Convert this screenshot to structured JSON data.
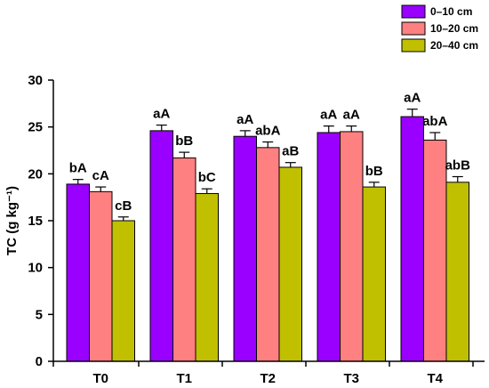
{
  "chart_data": {
    "type": "bar",
    "title": "",
    "xlabel": "",
    "ylabel": "TC (g kg⁻¹)",
    "ylim": [
      0,
      30
    ],
    "yticks": [
      0,
      5,
      10,
      15,
      20,
      25,
      30
    ],
    "categories": [
      "T0",
      "T1",
      "T2",
      "T3",
      "T4"
    ],
    "legend_position": "top-right",
    "series": [
      {
        "name": "0–10 cm",
        "color": "#9900ff",
        "values": [
          18.9,
          24.6,
          24.0,
          24.4,
          26.1
        ],
        "errors": [
          0.5,
          0.6,
          0.6,
          0.7,
          0.8
        ],
        "labels": [
          "bA",
          "aA",
          "aA",
          "aA",
          "aA"
        ]
      },
      {
        "name": "10–20 cm",
        "color": "#ff8080",
        "values": [
          18.1,
          21.7,
          22.8,
          24.5,
          23.6
        ],
        "errors": [
          0.5,
          0.6,
          0.6,
          0.6,
          0.8
        ],
        "labels": [
          "cA",
          "bB",
          "abA",
          "aA",
          "abA"
        ]
      },
      {
        "name": "20–40 cm",
        "color": "#c0c000",
        "values": [
          15.0,
          17.9,
          20.7,
          18.6,
          19.1
        ],
        "errors": [
          0.4,
          0.5,
          0.5,
          0.5,
          0.6
        ],
        "labels": [
          "cB",
          "bC",
          "aB",
          "bB",
          "abB"
        ]
      }
    ]
  }
}
